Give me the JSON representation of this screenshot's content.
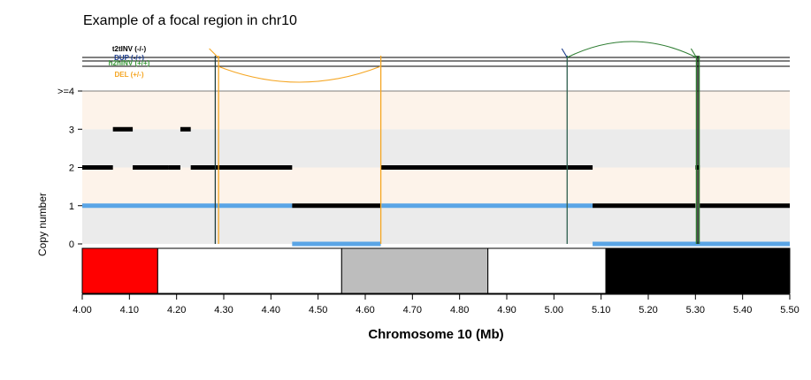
{
  "chart_data": {
    "type": "genome-track",
    "title": "Example of a focal region in chr10",
    "xlabel": "Chromosome 10 (Mb)",
    "ylabel": "Copy number",
    "xlim": [
      4.0,
      5.5
    ],
    "x_ticks": [
      4.0,
      4.1,
      4.2,
      4.3,
      4.4,
      4.5,
      4.6,
      4.7,
      4.8,
      4.9,
      5.0,
      5.1,
      5.2,
      5.3,
      5.4,
      5.5
    ],
    "x_tick_labels": [
      "4.00",
      "4.10",
      "4.20",
      "4.30",
      "4.40",
      "4.50",
      "4.60",
      "4.70",
      "4.80",
      "4.90",
      "5.00",
      "5.10",
      "5.20",
      "5.30",
      "5.40",
      "5.50"
    ],
    "y_ticks": [
      0,
      1,
      2,
      3,
      4
    ],
    "y_tick_labels": [
      "0",
      "1",
      "2",
      "3",
      ">=4"
    ],
    "ylim": [
      0,
      4
    ],
    "bands": [
      {
        "from": 0,
        "to": 1,
        "color": "#ebebeb"
      },
      {
        "from": 1,
        "to": 2,
        "color": "#fdf3ea"
      },
      {
        "from": 2,
        "to": 3,
        "color": "#ebebeb"
      },
      {
        "from": 3,
        "to": 4,
        "color": "#fdf3ea"
      }
    ],
    "minor_cn_color": "#5aa5e6",
    "total_cn_color": "#000000",
    "total_cn": [
      {
        "start": 4.0,
        "end": 4.065,
        "cn": 2
      },
      {
        "start": 4.065,
        "end": 4.107,
        "cn": 3
      },
      {
        "start": 4.107,
        "end": 4.182,
        "cn": 2
      },
      {
        "start": 4.182,
        "end": 4.208,
        "cn": 2
      },
      {
        "start": 4.208,
        "end": 4.23,
        "cn": 3
      },
      {
        "start": 4.23,
        "end": 4.445,
        "cn": 2
      },
      {
        "start": 4.445,
        "end": 4.633,
        "cn": 1
      },
      {
        "start": 4.633,
        "end": 5.082,
        "cn": 2
      },
      {
        "start": 5.082,
        "end": 5.3,
        "cn": 1
      },
      {
        "start": 5.3,
        "end": 5.309,
        "cn": 2
      },
      {
        "start": 5.309,
        "end": 5.5,
        "cn": 1
      }
    ],
    "minor_cn": [
      {
        "start": 4.0,
        "end": 4.445,
        "cn": 1
      },
      {
        "start": 4.445,
        "end": 4.633,
        "cn": 0
      },
      {
        "start": 4.633,
        "end": 5.082,
        "cn": 1
      },
      {
        "start": 5.082,
        "end": 5.5,
        "cn": 0
      }
    ],
    "sv_legend": [
      {
        "label": "t2tINV (-/-)",
        "color": "#000000"
      },
      {
        "label": "DUP (-/+)",
        "color": "#1a3a8a"
      },
      {
        "label": "h2hINV (+/+)",
        "color": "#3a9a3a"
      },
      {
        "label": "DEL (+/-)",
        "color": "#f5a623"
      }
    ],
    "sv_arcs": [
      {
        "type": "DEL (+/-)",
        "start": 4.288,
        "end": 4.633,
        "color": "#f5a623"
      },
      {
        "type": "h2hINV (+/+)",
        "start": 5.028,
        "end": 5.302,
        "color": "#2e7d32"
      }
    ],
    "breakpoints": [
      {
        "x": 4.282,
        "color": "#1f3d3d"
      },
      {
        "x": 4.289,
        "color": "#f5a623"
      },
      {
        "x": 4.633,
        "color": "#f5a623"
      },
      {
        "x": 5.028,
        "color": "#2e5e4e"
      },
      {
        "x": 5.302,
        "color": "#2e7d32"
      },
      {
        "x": 5.305,
        "color": "#000000"
      },
      {
        "x": 5.308,
        "color": "#2e7d32"
      }
    ],
    "ideogram": [
      {
        "start": 4.0,
        "end": 4.16,
        "color": "#ff0000"
      },
      {
        "start": 4.16,
        "end": 4.55,
        "color": "#ffffff"
      },
      {
        "start": 4.55,
        "end": 4.86,
        "color": "#bdbdbd"
      },
      {
        "start": 4.86,
        "end": 5.11,
        "color": "#ffffff"
      },
      {
        "start": 5.11,
        "end": 5.5,
        "color": "#000000"
      }
    ]
  }
}
